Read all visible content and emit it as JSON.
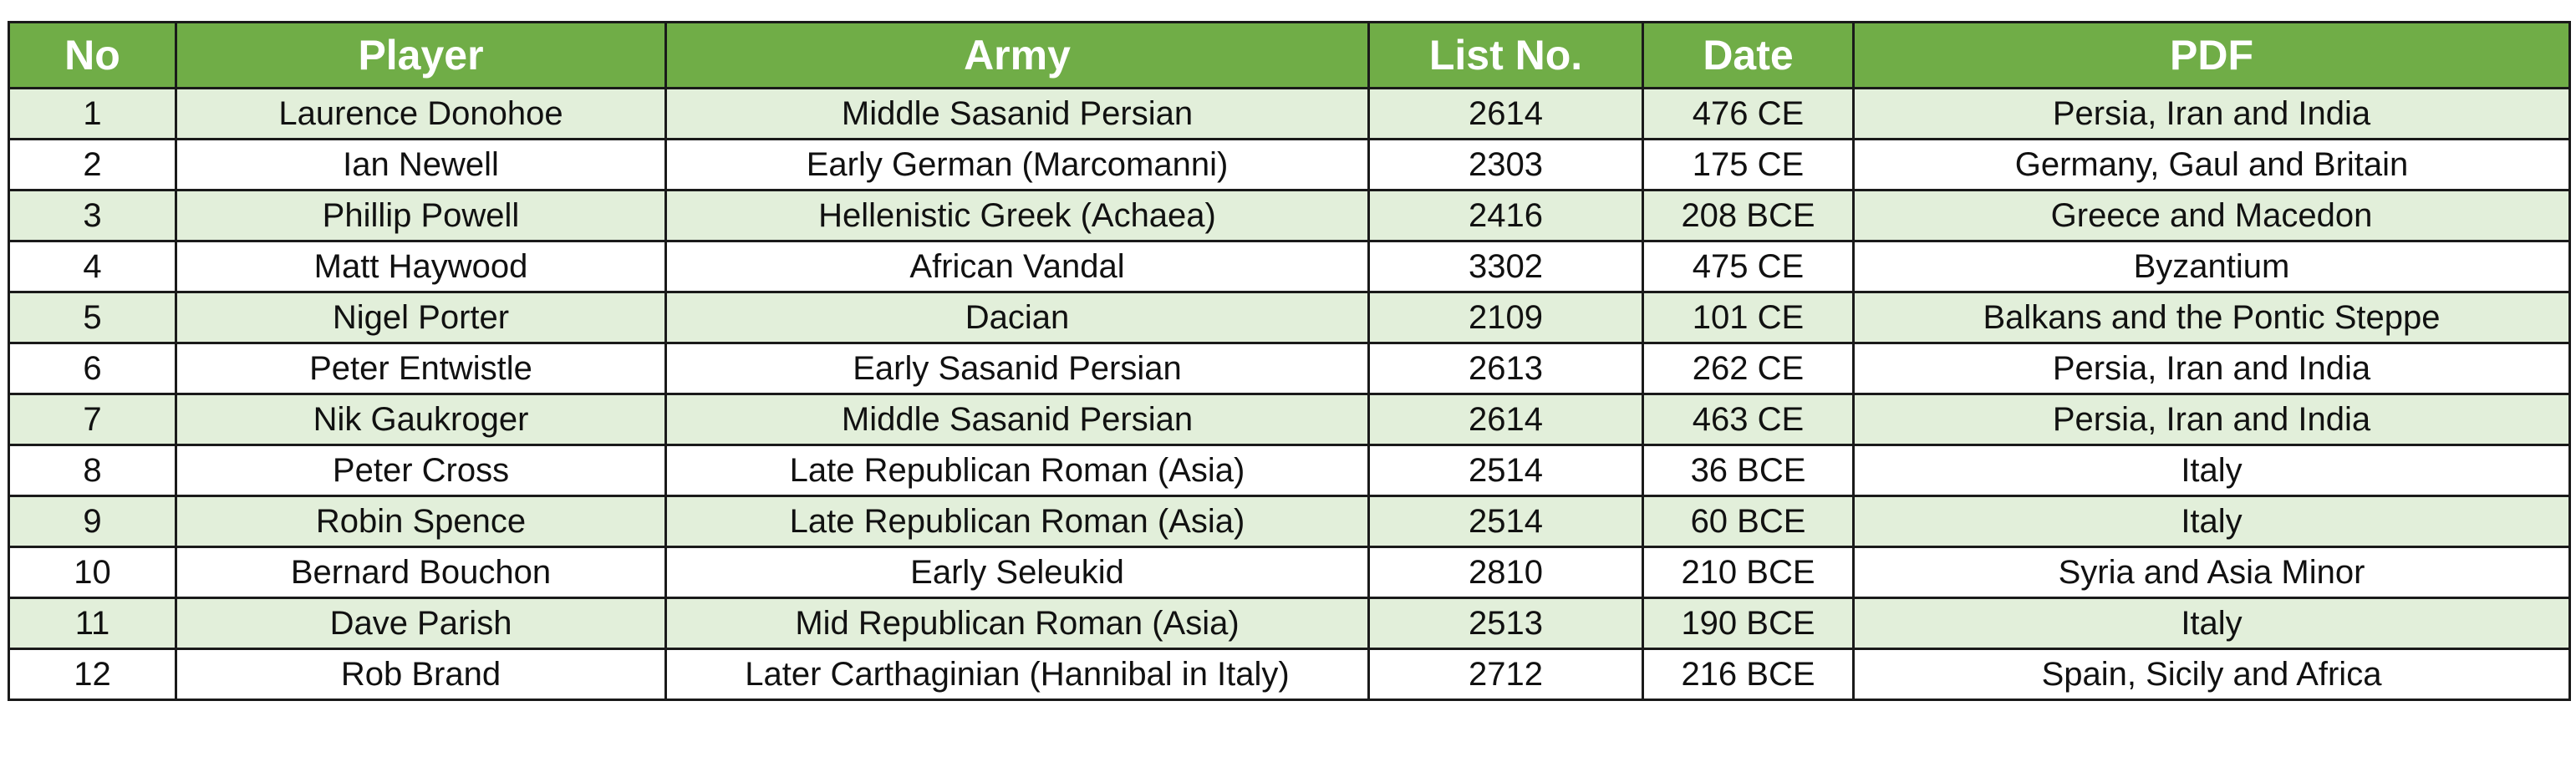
{
  "table": {
    "headers": [
      "No",
      "Player",
      "Army",
      "List No.",
      "Date",
      "PDF"
    ],
    "rows": [
      [
        "1",
        "Laurence Donohoe",
        "Middle Sasanid Persian",
        "2614",
        "476 CE",
        "Persia, Iran and India"
      ],
      [
        "2",
        "Ian Newell",
        "Early German (Marcomanni)",
        "2303",
        "175 CE",
        "Germany, Gaul and Britain"
      ],
      [
        "3",
        "Phillip Powell",
        "Hellenistic Greek (Achaea)",
        "2416",
        "208 BCE",
        "Greece and Macedon"
      ],
      [
        "4",
        "Matt Haywood",
        "African Vandal",
        "3302",
        "475 CE",
        "Byzantium"
      ],
      [
        "5",
        "Nigel Porter",
        "Dacian",
        "2109",
        "101 CE",
        "Balkans and the Pontic Steppe"
      ],
      [
        "6",
        "Peter Entwistle",
        "Early Sasanid Persian",
        "2613",
        "262 CE",
        "Persia, Iran and India"
      ],
      [
        "7",
        "Nik Gaukroger",
        "Middle Sasanid Persian",
        "2614",
        "463 CE",
        "Persia, Iran and India"
      ],
      [
        "8",
        "Peter Cross",
        "Late Republican Roman (Asia)",
        "2514",
        "36 BCE",
        "Italy"
      ],
      [
        "9",
        "Robin Spence",
        "Late Republican Roman (Asia)",
        "2514",
        "60 BCE",
        "Italy"
      ],
      [
        "10",
        "Bernard Bouchon",
        "Early Seleukid",
        "2810",
        "210 BCE",
        "Syria and Asia Minor"
      ],
      [
        "11",
        "Dave Parish",
        "Mid Republican Roman (Asia)",
        "2513",
        "190 BCE",
        "Italy"
      ],
      [
        "12",
        "Rob Brand",
        "Later Carthaginian (Hannibal in Italy)",
        "2712",
        "216 BCE",
        "Spain, Sicily and Africa"
      ]
    ]
  },
  "colors": {
    "header_bg": "#70ad47",
    "header_text": "#ffffff",
    "band_bg": "#e2efda",
    "border": "#1a1a1a"
  }
}
